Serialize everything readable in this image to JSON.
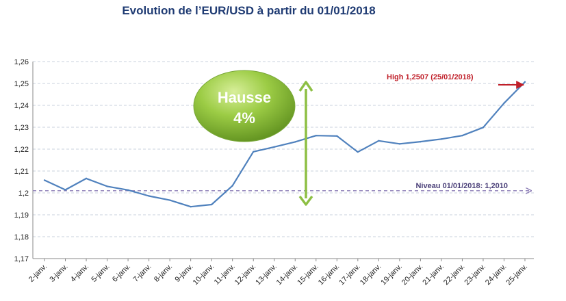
{
  "chart_data": {
    "type": "line",
    "title": "Evolution de l’EUR/USD à partir du 01/01/2018",
    "categories": [
      "2-janv.",
      "3-janv.",
      "4-janv.",
      "5-janv.",
      "6-janv.",
      "7-janv.",
      "8-janv.",
      "9-janv.",
      "10-janv.",
      "11-janv.",
      "12-janv.",
      "13-janv.",
      "14-janv.",
      "15-janv.",
      "16-janv.",
      "17-janv.",
      "18-janv.",
      "19-janv.",
      "20-janv.",
      "21-janv.",
      "22-janv.",
      "23-janv.",
      "24-janv.",
      "25-janv."
    ],
    "series": [
      {
        "values": [
          1.2058,
          1.2014,
          1.2066,
          1.203,
          1.2013,
          1.1986,
          1.1967,
          1.1937,
          1.1947,
          1.2033,
          1.2188,
          1.221,
          1.2233,
          1.2262,
          1.226,
          1.2187,
          1.2238,
          1.2224,
          1.2234,
          1.2246,
          1.2262,
          1.2299,
          1.241,
          1.2507
        ],
        "color": "#4f81bd"
      }
    ],
    "ylim": [
      1.17,
      1.26
    ],
    "yticks": [
      "1,17",
      "1,18",
      "1,19",
      "1,2",
      "1,21",
      "1,22",
      "1,23",
      "1,24",
      "1,25",
      "1,26"
    ],
    "grid": true,
    "reference_line": {
      "value": 1.201,
      "label": "Niveau 01/01/2018: 1,2010",
      "color": "#8a7bb5"
    },
    "annotations": {
      "high_label": "High 1,2507 (25/01/2018)",
      "badge_line1": "Hausse",
      "badge_line2": "4%"
    },
    "colors": {
      "high": "#c0202a",
      "arrow_green": "#8dbf44",
      "badge_green": "#8cc63f",
      "title": "#1f3b73"
    }
  }
}
